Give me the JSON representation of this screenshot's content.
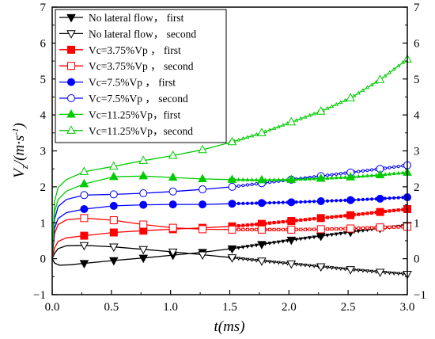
{
  "chart_data": {
    "type": "line",
    "title": "",
    "xlabel": "t(ms)",
    "ylabel_main": "V",
    "ylabel_sub": "z",
    "ylabel_unit": "/(m·s",
    "ylabel_exp": "-1",
    "ylabel_close": ")",
    "xlim": [
      0,
      3.0
    ],
    "ylim": [
      -1,
      7
    ],
    "xticks": [
      0.0,
      0.5,
      1.0,
      1.5,
      2.0,
      2.5,
      3.0
    ],
    "xtick_labels": [
      "0.0",
      "0.5",
      "1.0",
      "1.5",
      "2.0",
      "2.5",
      "3.0"
    ],
    "yticks": [
      -1,
      0,
      1,
      2,
      3,
      4,
      5,
      6,
      7
    ],
    "ytick_labels": [
      "−1",
      "0",
      "1",
      "2",
      "3",
      "4",
      "5",
      "6",
      "7"
    ],
    "grid": false,
    "legend_position": "top-left",
    "series": [
      {
        "name": "No lateral flow， first",
        "color": "#000000",
        "marker": "triangle-down",
        "filled": true,
        "x": [
          0,
          0.02,
          0.06,
          0.15,
          0.27,
          0.52,
          0.77,
          1.02,
          1.27,
          1.52,
          1.77,
          2.02,
          2.27,
          2.52,
          2.77,
          3.0
        ],
        "y": [
          0,
          -0.12,
          -0.18,
          -0.17,
          -0.13,
          -0.05,
          0.02,
          0.1,
          0.18,
          0.28,
          0.4,
          0.52,
          0.63,
          0.74,
          0.85,
          0.93
        ]
      },
      {
        "name": "No lateral flow， second",
        "color": "#000000",
        "marker": "triangle-down",
        "filled": false,
        "x": [
          0,
          0.02,
          0.05,
          0.12,
          0.27,
          0.52,
          0.77,
          1.02,
          1.27,
          1.52,
          1.77,
          2.02,
          2.27,
          2.52,
          2.77,
          3.0
        ],
        "y": [
          0,
          0.15,
          0.28,
          0.36,
          0.37,
          0.33,
          0.26,
          0.19,
          0.11,
          0.03,
          -0.06,
          -0.14,
          -0.22,
          -0.3,
          -0.37,
          -0.43
        ]
      },
      {
        "name": "Vc=3.75%Vp ， first",
        "color": "#ff0000",
        "marker": "square",
        "filled": true,
        "x": [
          0,
          0.02,
          0.05,
          0.12,
          0.27,
          0.52,
          0.77,
          1.02,
          1.27,
          1.52,
          1.77,
          2.02,
          2.27,
          2.52,
          2.77,
          3.0
        ],
        "y": [
          0,
          0.3,
          0.48,
          0.58,
          0.64,
          0.73,
          0.78,
          0.82,
          0.86,
          0.9,
          0.97,
          1.05,
          1.13,
          1.21,
          1.3,
          1.38
        ]
      },
      {
        "name": "Vc=3.75%Vp ， second",
        "color": "#ff0000",
        "marker": "square",
        "filled": false,
        "x": [
          0,
          0.02,
          0.05,
          0.12,
          0.27,
          0.52,
          0.77,
          1.02,
          1.27,
          1.52,
          1.77,
          2.02,
          2.27,
          2.52,
          2.77,
          3.0
        ],
        "y": [
          0,
          0.7,
          0.95,
          1.08,
          1.13,
          1.07,
          0.95,
          0.86,
          0.82,
          0.81,
          0.81,
          0.81,
          0.82,
          0.84,
          0.87,
          0.89
        ]
      },
      {
        "name": "Vc=7.5%Vp ， first",
        "color": "#0000ff",
        "marker": "circle",
        "filled": true,
        "x": [
          0,
          0.02,
          0.05,
          0.12,
          0.27,
          0.52,
          0.77,
          1.02,
          1.27,
          1.52,
          1.77,
          2.02,
          2.27,
          2.52,
          2.77,
          3.0
        ],
        "y": [
          0,
          0.85,
          1.12,
          1.28,
          1.38,
          1.47,
          1.5,
          1.51,
          1.51,
          1.53,
          1.55,
          1.57,
          1.6,
          1.63,
          1.67,
          1.71
        ]
      },
      {
        "name": "Vc=7.5%Vp ，  second",
        "color": "#0000ff",
        "marker": "circle",
        "filled": false,
        "x": [
          0,
          0.02,
          0.05,
          0.12,
          0.27,
          0.52,
          0.77,
          1.02,
          1.27,
          1.52,
          1.77,
          2.02,
          2.27,
          2.52,
          2.77,
          3.0
        ],
        "y": [
          0,
          1.1,
          1.45,
          1.65,
          1.77,
          1.79,
          1.82,
          1.87,
          1.93,
          2.0,
          2.1,
          2.2,
          2.3,
          2.4,
          2.5,
          2.6
        ]
      },
      {
        "name": "Vc=11.25%Vp，first",
        "color": "#00cc00",
        "marker": "triangle-up",
        "filled": true,
        "x": [
          0,
          0.02,
          0.05,
          0.12,
          0.27,
          0.52,
          0.77,
          1.02,
          1.27,
          1.52,
          1.77,
          2.02,
          2.27,
          2.52,
          2.77,
          3.0
        ],
        "y": [
          0,
          1.3,
          1.65,
          1.88,
          2.08,
          2.28,
          2.3,
          2.26,
          2.22,
          2.2,
          2.19,
          2.2,
          2.23,
          2.27,
          2.33,
          2.4
        ]
      },
      {
        "name": "Vc=11.25%Vp，second",
        "color": "#00cc00",
        "marker": "triangle-up",
        "filled": false,
        "x": [
          0,
          0.02,
          0.05,
          0.12,
          0.27,
          0.52,
          0.77,
          1.02,
          1.27,
          1.52,
          1.77,
          2.02,
          2.27,
          2.52,
          2.77,
          3.0
        ],
        "y": [
          0,
          1.6,
          1.98,
          2.2,
          2.42,
          2.57,
          2.73,
          2.87,
          3.03,
          3.25,
          3.5,
          3.8,
          4.1,
          4.47,
          4.98,
          5.55
        ]
      }
    ]
  }
}
